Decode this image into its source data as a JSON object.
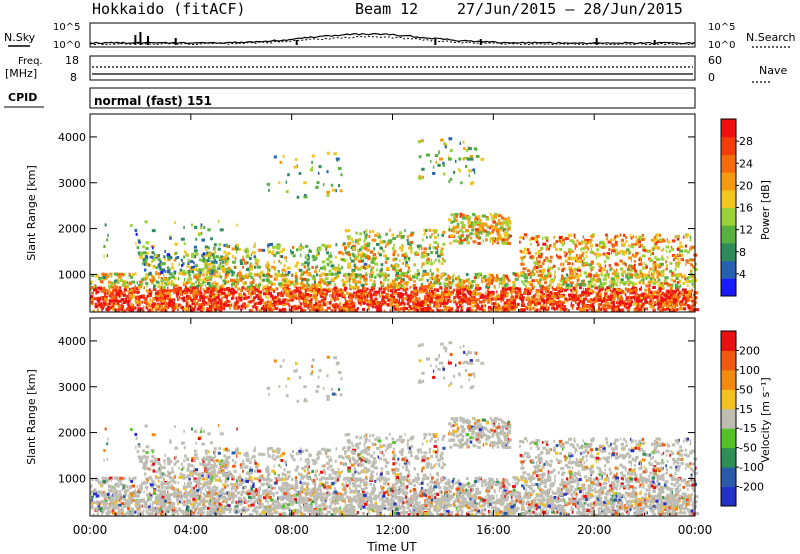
{
  "header": {
    "radar": "Hokkaido (fitACF)",
    "beam_label": "Beam 12",
    "date_range": "27/Jun/2015 – 28/Jun/2015"
  },
  "noise_panel": {
    "left_label": "N.Sky",
    "right_label": "N.Search",
    "left_ticks": [
      "10^5",
      "10^0"
    ],
    "right_ticks": [
      "10^5",
      "10^0"
    ]
  },
  "freq_panel": {
    "left_label_line1": "Freq.",
    "left_label_line2": "[MHz]",
    "right_label": "Nave",
    "left_ticks": [
      "18",
      "8"
    ],
    "right_ticks": [
      "60",
      "0"
    ]
  },
  "cpid_panel": {
    "label": "CPID",
    "mode": "normal (fast) 151"
  },
  "time_axis": {
    "label": "Time UT",
    "ticks": [
      "00:00",
      "04:00",
      "08:00",
      "12:00",
      "16:00",
      "20:00",
      "00:00"
    ],
    "range_hours": [
      0,
      24
    ]
  },
  "chart_data": [
    {
      "type": "heatmap",
      "title": "",
      "xlabel": "",
      "ylabel": "Slant Range [km]",
      "xlim": [
        0,
        24
      ],
      "ylim": [
        180,
        4500
      ],
      "yticks": [
        "1000",
        "2000",
        "3000",
        "4000"
      ],
      "ytick_values": [
        1000,
        2000,
        3000,
        4000
      ],
      "colorbar": {
        "label": "Power [dB]",
        "ticks": [
          "28",
          "24",
          "20",
          "16",
          "12",
          "8",
          "4"
        ],
        "tick_values": [
          28,
          24,
          20,
          16,
          12,
          8,
          4
        ],
        "min": 0,
        "max": 32,
        "colors": [
          "#1a1aff",
          "#2860b0",
          "#2e8a5a",
          "#58b040",
          "#9bd238",
          "#f2c520",
          "#f39a10",
          "#f56a0c",
          "#f43b0c",
          "#ee1010"
        ]
      }
    },
    {
      "type": "heatmap",
      "title": "",
      "xlabel": "Time UT",
      "ylabel": "Slant Range [km]",
      "xlim": [
        0,
        24
      ],
      "ylim": [
        180,
        4500
      ],
      "yticks": [
        "1000",
        "2000",
        "3000",
        "4000"
      ],
      "ytick_values": [
        1000,
        2000,
        3000,
        4000
      ],
      "colorbar": {
        "label": "Velocity [m s⁻¹]",
        "ticks": [
          "200",
          "100",
          "50",
          "15",
          "-15",
          "-50",
          "-100",
          "-200"
        ],
        "tick_values": [
          200,
          100,
          50,
          15,
          -15,
          -50,
          -100,
          -200
        ],
        "colors": [
          "#2430c8",
          "#2a5aa8",
          "#2e8e55",
          "#55c028",
          "#bdbdb4",
          "#f2c020",
          "#f08a10",
          "#f05a10",
          "#e81010"
        ]
      }
    }
  ]
}
